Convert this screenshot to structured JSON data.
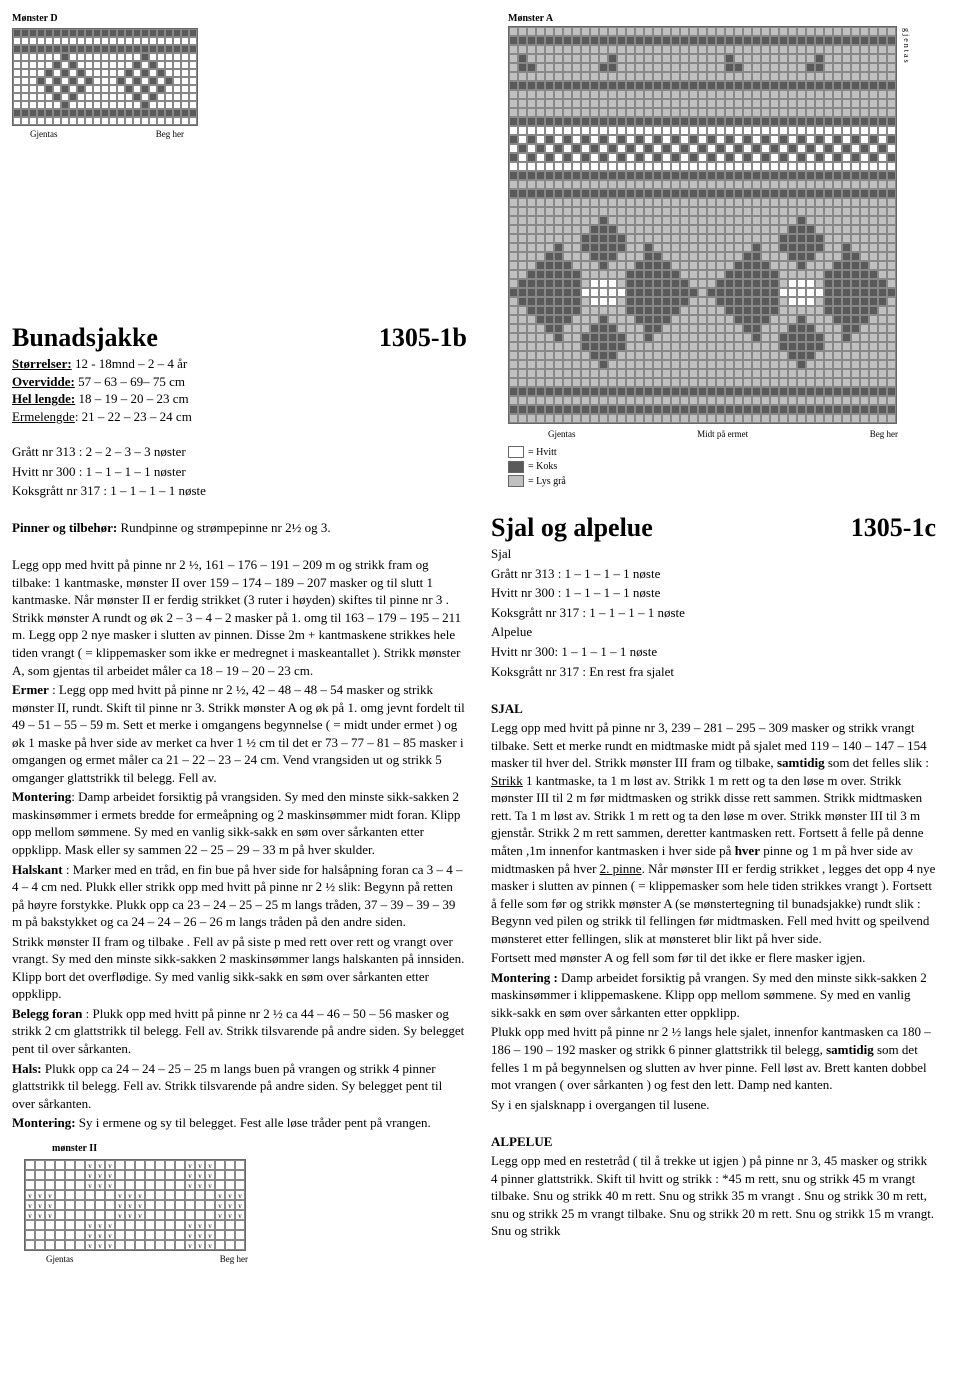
{
  "patternD": {
    "label": "Mønster D",
    "cols": 23,
    "rows": 12,
    "colors": {
      "k": "#5a5a5a",
      "w": "#ffffff",
      "g": "#c0c0c0"
    },
    "grid": [
      "kkkkkkkkkkkkkkkkkkkkkkk",
      "wwwwwwwwwwwwwwwwwwwwwww",
      "kkkkkkkkkkkkkkkkkkkkkkk",
      "wwwwwwkwwwwwwwwwkwwwwww",
      "wwwwwkwkwwwwwwwkwkwwwww",
      "wwwwkwkwkwwwwwkwkwkwwww",
      "wwwkwkwkwkwwwkwkwkwkwww",
      "wwwwkwkwkwwwwwkwkwkwwww",
      "wwwwwkwkwwwwwwwkwkwwwww",
      "wwwwwwkwwwwwwwwwkwwwwww",
      "kkkkkkkkkkkkkkkkkkkkkkk",
      "wwwwwwwwwwwwwwwwwwwwwww"
    ],
    "caption_left": "Gjentas",
    "caption_right": "Beg her"
  },
  "patternA": {
    "label": "Mønster A",
    "side_text": "gjentas",
    "cols": 43,
    "rows": 44,
    "grid": [
      "ggggggggggggggggggggggggggggggggggggggggggg",
      "kkkkkkkkkkkkkkkkkkkkkkkkkkkkkkkkkkkkkkkkkkk",
      "ggggggggggggggggggggggggggggggggggggggggggg",
      "gkgggggggggkggggggggggggkgggggggggkgggggggg",
      "gkkgggggggkkggggggggggggkkgggggggkkgggggggg",
      "ggggggggggggggggggggggggggggggggggggggggggg",
      "kkkkkkkkkkkkkkkkkkkkkkkkkkkkkkkkkkkkkkkkkkk",
      "ggggggggggggggggggggggggggggggggggggggggggg",
      "ggggggggggggggggggggggggggggggggggggggggggg",
      "ggggggggggggggggggggggggggggggggggggggggggg",
      "kkkkkkkkkkkkkkkkkkkkkkkkkkkkkkkkkkkkkkkkkkk",
      "wwwwwwwwwwwwwwwwwwwwwwwwwwwwwwwwwwwwwwwwwww",
      "kwkwkwkwkwkwkwkwkwkwkwkwkwkwkwkwkwkwkwkwkwk",
      "wkwkwkwkwkwkwkwkwkwkwkwkwkwkwkwkwkwkwkwkwkw",
      "kwkwkwkwkwkwkwkwkwkwkwkwkwkwkwkwkwkwkwkwkwk",
      "wwwwwwwwwwwwwwwwwwwwwwwwwwwwwwwwwwwwwwwwwww",
      "kkkkkkkkkkkkkkkkkkkkkkkkkkkkkkkkkkkkkkkkkkk",
      "ggggggggggggggggggggggggggggggggggggggggggg",
      "kkkkkkkkkkkkkkkkkkkkkkkkkkkkkkkkkkkkkkkkkkk",
      "ggggggggggggggggggggggggggggggggggggggggggg",
      "ggggggggggggggggggggggggggggggggggggggggggg",
      "ggggggggggkgggggggggggggggggggggkgggggggggg",
      "gggggggggkkkgggggggggggggggggggkkkggggggggg",
      "ggggggggkkkkkgggggggggggggggggkkkkkgggggggg",
      "gggggkggkkkkkggkgggggggggggkggkkkkkggkggggg",
      "ggggkkgggkkkgggkkgggggggggkkgggkkkgggkkgggg",
      "gggkkkkgggkgggkkkkgggggggkkkkgggkgggkkkkggg",
      "ggkkkkkkgggggkkkkkkgggggkkkkkkgggggkkkkkkgg",
      "gkkkkkkkgwwwgkkkkkkkgggkkkkkkkgwwwgkkkkkkkg",
      "kkkkkkkkwwwwwkkkkkkkkgkkkkkkkkwwwwwkkkkkkkk",
      "gkkkkkkkgwwwgkkkkkkkgggkkkkkkkgwwwgkkkkkkkg",
      "ggkkkkkkgggggkkkkkkgggggkkkkkkgggggkkkkkkgg",
      "gggkkkkgggkgggkkkkgggggggkkkkgggkgggkkkkggg",
      "ggggkkgggkkkgggkkgggggggggkkgggkkkgggkkgggg",
      "gggggkggkkkkkggkgggggggggggkggkkkkkggkggggg",
      "ggggggggkkkkkgggggggggggggggggkkkkkgggggggg",
      "gggggggggkkkgggggggggggggggggggkkkggggggggg",
      "ggggggggggkgggggggggggggggggggggkgggggggggg",
      "ggggggggggggggggggggggggggggggggggggggggggg",
      "ggggggggggggggggggggggggggggggggggggggggggg",
      "kkkkkkkkkkkkkkkkkkkkkkkkkkkkkkkkkkkkkkkkkkk",
      "ggggggggggggggggggggggggggggggggggggggggggg",
      "kkkkkkkkkkkkkkkkkkkkkkkkkkkkkkkkkkkkkkkkkkk",
      "ggggggggggggggggggggggggggggggggggggggggggg"
    ],
    "caption_left": "Gjentas",
    "caption_mid": "Midt på ermet",
    "caption_right": "Beg her"
  },
  "legend": {
    "hvitt": "= Hvitt",
    "koks": "= Koks",
    "lys": "= Lys grå"
  },
  "left": {
    "title": "Bunadsjakke",
    "code": "1305-1b",
    "size_label": "Størrelser:",
    "size_val": " 12 - 18mnd – 2 – 4 år",
    "over_label": "Overvidde:",
    "over_val": " 57 – 63 – 69– 75 cm",
    "hel_label": "Hel lengde:",
    "hel_val": " 18 – 19 – 20 – 23 cm",
    "erme_label": "Ermelengde",
    "erme_val": ": 21 – 22 – 23 – 24 cm",
    "yarn1": "Grått nr 313 : 2 – 2 – 3 – 3 nøster",
    "yarn2": "Hvitt nr 300 : 1 – 1 – 1 – 1 nøster",
    "yarn3": "Koksgrått nr 317 : 1 – 1 – 1 – 1 nøste",
    "pinner_b": "Pinner og tilbehør:",
    "pinner_t": " Rundpinne og strømpepinne nr 2½ og 3.",
    "body1": "Legg opp med hvitt på pinne nr 2 ½,  161 – 176 – 191 – 209 m og strikk fram og tilbake: 1 kantmaske, mønster II over 159 – 174 – 189 – 207 masker og til slutt 1 kantmaske. Når mønster II er ferdig strikket (3 ruter i høyden) skiftes til pinne nr 3 . Strikk mønster A rundt og øk 2 – 3 – 4 – 2  masker på 1. omg til  163 – 179 – 195 – 211 m. Legg opp 2 nye masker i slutten av pinnen. Disse  2m + kantmaskene strikkes hele tiden vrangt ( = klippemasker som ikke er medregnet i maskeantallet ). Strikk mønster A, som gjentas til arbeidet måler ca  18 – 19 – 20 – 23 cm.",
    "ermer_b": "Ermer",
    "ermer_t": " : Legg opp med hvitt på pinne nr 2 ½, 42 – 48 – 48 – 54 masker og strikk  mønster II, rundt. Skift til pinne nr 3. Strikk mønster A og øk  på 1. omg  jevnt fordelt til  49 – 51 – 55 – 59 m. Sett et merke i omgangens begynnelse  ( = midt under ermet ) og øk 1 maske på hver side av merket ca hver  1 ½ cm til det er  73 – 77 – 81 – 85 masker i omgangen og ermet måler ca  21 – 22 – 23 – 24 cm. Vend vrangsiden ut og strikk 5 omganger glattstrikk til belegg. Fell av.",
    "mont_b": "Montering",
    "mont_t": ": Damp arbeidet forsiktig på vrangsiden. Sy med den minste sikk-sakken 2 maskinsømmer i ermets bredde for ermeåpning og 2 maskinsømmer midt foran. Klipp opp mellom sømmene. Sy med en vanlig sikk-sakk en søm over sårkanten etter oppklipp. Mask eller sy sammen  22 – 25 – 29 – 33 m på hver skulder.",
    "hals_b": "Halskant",
    "hals_t": " : Marker med en tråd, en fin bue på hver side for halsåpning foran ca  3 – 4 – 4 – 4 cm ned. Plukk eller strikk opp med hvitt på pinne nr 2 ½ slik: Begynn på retten på høyre forstykke.  Plukk opp  ca  23 – 24 – 25 – 25 m langs tråden, 37 – 39 – 39 – 39 m på bakstykket og  ca  24 – 24 – 26 – 26 m langs tråden på den andre siden.",
    "body2": "Strikk mønster II fram og tilbake .  Fell av på siste p med rett over rett og vrangt over vrangt. Sy med den minste sikk-sakken  2 maskinsømmer langs halskanten på innsiden. Klipp bort det overflødige. Sy med vanlig sikk-sakk en søm over sårkanten etter oppklipp.",
    "belegg_b": "Belegg foran",
    "belegg_t": " : Plukk opp med hvitt på pinne nr 2 ½  ca  44 – 46 – 50 – 56 masker og strikk 2 cm glattstrikk til belegg. Fell av. Strikk tilsvarende på andre siden. Sy belegget pent til over sårkanten.",
    "hals2_b": "Hals:",
    "hals2_t": " Plukk  opp  ca  24 – 24 – 25 – 25 m langs buen på vrangen og strikk 4 pinner glattstrikk til belegg. Fell av. Strikk tilsvarende på andre siden. Sy belegget pent til over sårkanten.",
    "mont2_b": "Montering:",
    "mont2_t": " Sy i ermene og sy til belegget. Fest alle løse tråder pent på vrangen.",
    "m2_label": "mønster II",
    "m2_caption_left": "Gjentas",
    "m2_caption_right": "Beg her"
  },
  "patternII": {
    "cols": 22,
    "rows": 9,
    "grid": [
      "......vvv.......vvv...",
      "......vvv.......vvv...",
      "......vvv.......vvv...",
      "vvv......vvv.......vvv",
      "vvv......vvv.......vvv",
      "vvv......vvv.......vvv",
      "......vvv.......vvv...",
      "......vvv.......vvv...",
      "......vvv.......vvv..."
    ]
  },
  "right": {
    "title": "Sjal og alpelue",
    "code": "1305-1c",
    "sub1": "Sjal",
    "y1": "Grått nr 313 : 1 – 1 – 1 – 1 nøste",
    "y2": "Hvitt nr 300 : 1 – 1 – 1 – 1 nøste",
    "y3": "Koksgrått nr 317 : 1 – 1 – 1 – 1 nøste",
    "sub2": "Alpelue",
    "y4": "Hvitt nr 300: 1 – 1 – 1 – 1 nøste",
    "y5": "Koksgrått nr 317 : En rest fra sjalet",
    "sjal_h": "SJAL",
    "sjal_body": "Legg opp med hvitt på pinne nr 3,  239 – 281 – 295 – 309   masker og strikk vrangt tilbake. Sett et merke rundt en midtmaske midt på sjalet med  119 – 140 – 147 – 154 masker til hver del. Strikk mønster III fram og tilbake, ",
    "samtidig_b": "samtidig",
    "sjal_body2": " som det felles slik : ",
    "strikk_u": "Strikk",
    "sjal_body3": " 1 kantmaske, ta 1 m løst av. Strikk 1 m rett og ta den løse m over. Strikk mønster III til 2 m før midtmasken og strikk disse rett sammen. Strikk midtmasken rett. Ta 1 m løst av. Strikk 1 m rett og ta den løse m over. Strikk mønster III til 3 m gjenstår. Strikk 2 m rett sammen, deretter kantmasken rett. Fortsett å felle på denne måten ,1m innenfor  kantmasken i hver side på ",
    "hver_b": "hver",
    "sjal_body4": " pinne og 1 m på hver side av midtmasken på hver ",
    "pinne2_u": "2. pinne",
    "sjal_body5": ". Når mønster III er ferdig strikket , legges det opp 4 nye masker i slutten av pinnen ( = klippemasker som hele tiden strikkes vrangt ). Fortsett å felle som før og strikk mønster A (se mønstertegning til bunadsjakke) rundt slik : Begynn ved pilen og strikk til fellingen før midtmasken. Fell med hvitt og speilvend mønsteret etter fellingen, slik at mønsteret blir likt på hver side.",
    "sjal_body6": "Fortsett med mønster A og fell som før til det ikke er flere masker igjen.",
    "mont_b": "Montering :",
    "mont_t": " Damp arbeidet forsiktig på vrangen. Sy med den minste sikk-sakken 2 maskinsømmer i klippemaskene. Klipp opp mellom sømmene. Sy med en vanlig sikk-sakk en søm over sårkanten etter oppklipp.",
    "plukk": "Plukk opp med hvitt på pinne nr 2 ½ langs hele sjalet, innenfor kantmasken   ca 180 – 186 – 190 – 192  masker og strikk  6 pinner glattstrikk til belegg, ",
    "samtidig2_b": "samtidig",
    "plukk2": " som det felles 1 m på begynnelsen og slutten av hver pinne.  Fell løst av.  Brett kanten dobbel mot vrangen ( over sårkanten ) og fest den lett. Damp ned kanten.",
    "sy": "Sy i en sjalsknapp i overgangen til lusene.",
    "alpe_h": "ALPELUE",
    "alpe": "Legg opp med en restetråd ( til å trekke ut igjen ) på pinne nr 3, 45 masker og strikk  4 pinner glattstrikk. Skift til hvitt og strikk : *45 m rett, snu og strikk 45 m vrangt tilbake. Snu og strikk 40 m rett. Snu og strikk  35 m vrangt . Snu og strikk  30 m rett, snu og strikk  25 m vrangt tilbake. Snu og strikk 20 m rett. Snu og strikk 15 m vrangt. Snu og strikk"
  }
}
